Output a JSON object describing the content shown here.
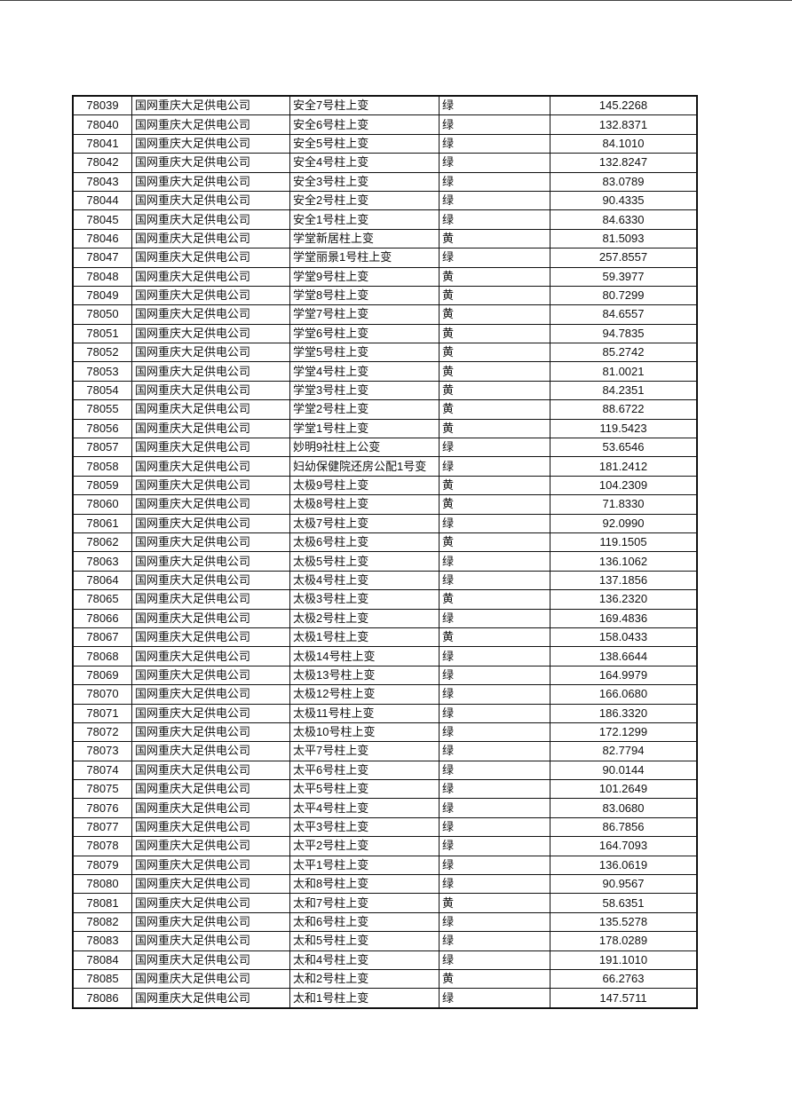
{
  "table": {
    "rows": [
      [
        "78039",
        "国网重庆大足供电公司",
        "安全7号柱上变",
        "绿",
        "145.2268"
      ],
      [
        "78040",
        "国网重庆大足供电公司",
        "安全6号柱上变",
        "绿",
        "132.8371"
      ],
      [
        "78041",
        "国网重庆大足供电公司",
        "安全5号柱上变",
        "绿",
        "84.1010"
      ],
      [
        "78042",
        "国网重庆大足供电公司",
        "安全4号柱上变",
        "绿",
        "132.8247"
      ],
      [
        "78043",
        "国网重庆大足供电公司",
        "安全3号柱上变",
        "绿",
        "83.0789"
      ],
      [
        "78044",
        "国网重庆大足供电公司",
        "安全2号柱上变",
        "绿",
        "90.4335"
      ],
      [
        "78045",
        "国网重庆大足供电公司",
        "安全1号柱上变",
        "绿",
        "84.6330"
      ],
      [
        "78046",
        "国网重庆大足供电公司",
        "学堂新居柱上变",
        "黄",
        "81.5093"
      ],
      [
        "78047",
        "国网重庆大足供电公司",
        "学堂丽景1号柱上变",
        "绿",
        "257.8557"
      ],
      [
        "78048",
        "国网重庆大足供电公司",
        "学堂9号柱上变",
        "黄",
        "59.3977"
      ],
      [
        "78049",
        "国网重庆大足供电公司",
        "学堂8号柱上变",
        "黄",
        "80.7299"
      ],
      [
        "78050",
        "国网重庆大足供电公司",
        "学堂7号柱上变",
        "黄",
        "84.6557"
      ],
      [
        "78051",
        "国网重庆大足供电公司",
        "学堂6号柱上变",
        "黄",
        "94.7835"
      ],
      [
        "78052",
        "国网重庆大足供电公司",
        "学堂5号柱上变",
        "黄",
        "85.2742"
      ],
      [
        "78053",
        "国网重庆大足供电公司",
        "学堂4号柱上变",
        "黄",
        "81.0021"
      ],
      [
        "78054",
        "国网重庆大足供电公司",
        "学堂3号柱上变",
        "黄",
        "84.2351"
      ],
      [
        "78055",
        "国网重庆大足供电公司",
        "学堂2号柱上变",
        "黄",
        "88.6722"
      ],
      [
        "78056",
        "国网重庆大足供电公司",
        "学堂1号柱上变",
        "黄",
        "119.5423"
      ],
      [
        "78057",
        "国网重庆大足供电公司",
        "妙明9社柱上公变",
        "绿",
        "53.6546"
      ],
      [
        "78058",
        "国网重庆大足供电公司",
        "妇幼保健院还房公配1号变",
        "绿",
        "181.2412"
      ],
      [
        "78059",
        "国网重庆大足供电公司",
        "太极9号柱上变",
        "黄",
        "104.2309"
      ],
      [
        "78060",
        "国网重庆大足供电公司",
        "太极8号柱上变",
        "黄",
        "71.8330"
      ],
      [
        "78061",
        "国网重庆大足供电公司",
        "太极7号柱上变",
        "绿",
        "92.0990"
      ],
      [
        "78062",
        "国网重庆大足供电公司",
        "太极6号柱上变",
        "黄",
        "119.1505"
      ],
      [
        "78063",
        "国网重庆大足供电公司",
        "太极5号柱上变",
        "绿",
        "136.1062"
      ],
      [
        "78064",
        "国网重庆大足供电公司",
        "太极4号柱上变",
        "绿",
        "137.1856"
      ],
      [
        "78065",
        "国网重庆大足供电公司",
        "太极3号柱上变",
        "黄",
        "136.2320"
      ],
      [
        "78066",
        "国网重庆大足供电公司",
        "太极2号柱上变",
        "绿",
        "169.4836"
      ],
      [
        "78067",
        "国网重庆大足供电公司",
        "太极1号柱上变",
        "黄",
        "158.0433"
      ],
      [
        "78068",
        "国网重庆大足供电公司",
        "太极14号柱上变",
        "绿",
        "138.6644"
      ],
      [
        "78069",
        "国网重庆大足供电公司",
        "太极13号柱上变",
        "绿",
        "164.9979"
      ],
      [
        "78070",
        "国网重庆大足供电公司",
        "太极12号柱上变",
        "绿",
        "166.0680"
      ],
      [
        "78071",
        "国网重庆大足供电公司",
        "太极11号柱上变",
        "绿",
        "186.3320"
      ],
      [
        "78072",
        "国网重庆大足供电公司",
        "太极10号柱上变",
        "绿",
        "172.1299"
      ],
      [
        "78073",
        "国网重庆大足供电公司",
        "太平7号柱上变",
        "绿",
        "82.7794"
      ],
      [
        "78074",
        "国网重庆大足供电公司",
        "太平6号柱上变",
        "绿",
        "90.0144"
      ],
      [
        "78075",
        "国网重庆大足供电公司",
        "太平5号柱上变",
        "绿",
        "101.2649"
      ],
      [
        "78076",
        "国网重庆大足供电公司",
        "太平4号柱上变",
        "绿",
        "83.0680"
      ],
      [
        "78077",
        "国网重庆大足供电公司",
        "太平3号柱上变",
        "绿",
        "86.7856"
      ],
      [
        "78078",
        "国网重庆大足供电公司",
        "太平2号柱上变",
        "绿",
        "164.7093"
      ],
      [
        "78079",
        "国网重庆大足供电公司",
        "太平1号柱上变",
        "绿",
        "136.0619"
      ],
      [
        "78080",
        "国网重庆大足供电公司",
        "太和8号柱上变",
        "绿",
        "90.9567"
      ],
      [
        "78081",
        "国网重庆大足供电公司",
        "太和7号柱上变",
        "黄",
        "58.6351"
      ],
      [
        "78082",
        "国网重庆大足供电公司",
        "太和6号柱上变",
        "绿",
        "135.5278"
      ],
      [
        "78083",
        "国网重庆大足供电公司",
        "太和5号柱上变",
        "绿",
        "178.0289"
      ],
      [
        "78084",
        "国网重庆大足供电公司",
        "太和4号柱上变",
        "绿",
        "191.1010"
      ],
      [
        "78085",
        "国网重庆大足供电公司",
        "太和2号柱上变",
        "黄",
        "66.2763"
      ],
      [
        "78086",
        "国网重庆大足供电公司",
        "太和1号柱上变",
        "绿",
        "147.5711"
      ]
    ]
  }
}
